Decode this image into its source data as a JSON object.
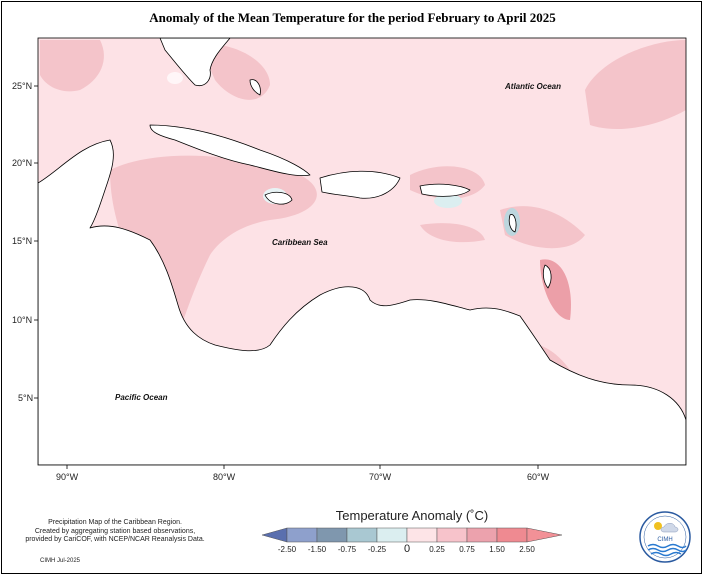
{
  "title": "Anomaly of the Mean Temperature for the period February to April 2025",
  "labels": {
    "atlantic": "Atlantic Ocean",
    "caribbean": "Caribbean Sea",
    "pacific": "Pacific Ocean"
  },
  "lat_ticks": [
    "25°N",
    "20°N",
    "15°N",
    "10°N",
    "5°N"
  ],
  "lon_ticks": [
    "90°W",
    "80°W",
    "70°W",
    "60°W"
  ],
  "legend": {
    "title": "Temperature Anomaly (˚C)",
    "ticks": [
      "-2.50",
      "-1.50",
      "-0.75",
      "-0.25",
      "0",
      "0.25",
      "0.75",
      "1.50",
      "2.50"
    ],
    "colors": [
      "#5a6fae",
      "#8ea0cc",
      "#7f97ae",
      "#a9c8d2",
      "#dbeef0",
      "#fde4e7",
      "#f7c3cb",
      "#eca2ad",
      "#ef8a91",
      "#f29197"
    ]
  },
  "credits": {
    "line1": "Precipitation Map of the Caribbean Region.",
    "line2": "Created by aggregating station based observations,",
    "line3": "provided by CariCOF, with NCEP/NCAR Reanalysis Data.",
    "date": "CIMH Jul-2025"
  },
  "logo_text": "CIMH",
  "colors": {
    "background": "#fde2e6",
    "warm1": "#f4c4ca",
    "warm2": "#ec9fa8",
    "cool": "#bcd6de"
  }
}
